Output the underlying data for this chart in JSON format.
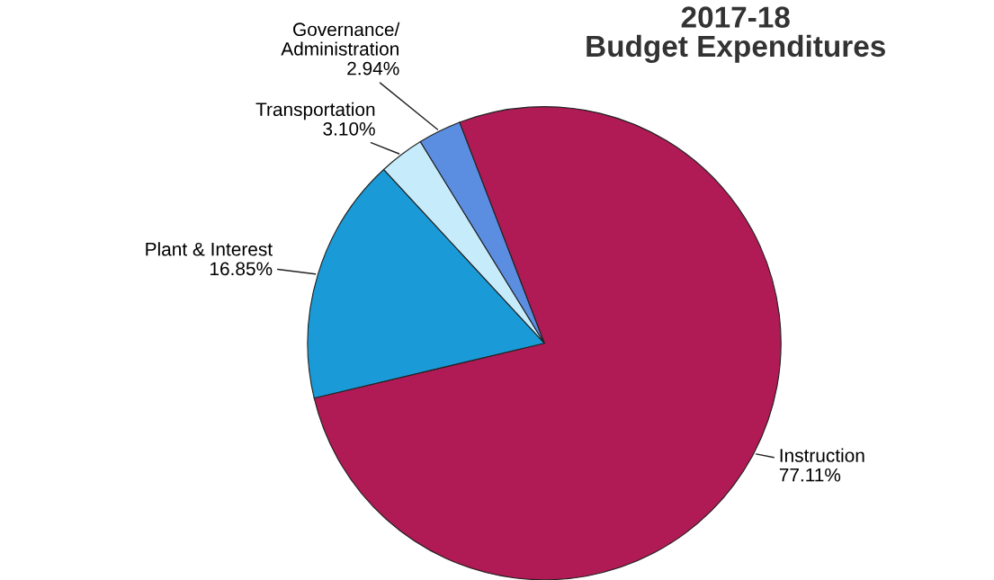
{
  "chart_data": {
    "type": "pie",
    "title": "2017-18\nBudget Expenditures",
    "categories": [
      "Instruction",
      "Plant & Interest",
      "Transportation",
      "Governance/\nAdministration"
    ],
    "values": [
      77.11,
      16.85,
      3.1,
      2.94
    ],
    "colors": [
      "#b01a55",
      "#1a9ad6",
      "#c6ecfb",
      "#5b8ee0"
    ],
    "value_labels": [
      "77.11%",
      "16.85%",
      "3.10%",
      "2.94%"
    ]
  }
}
